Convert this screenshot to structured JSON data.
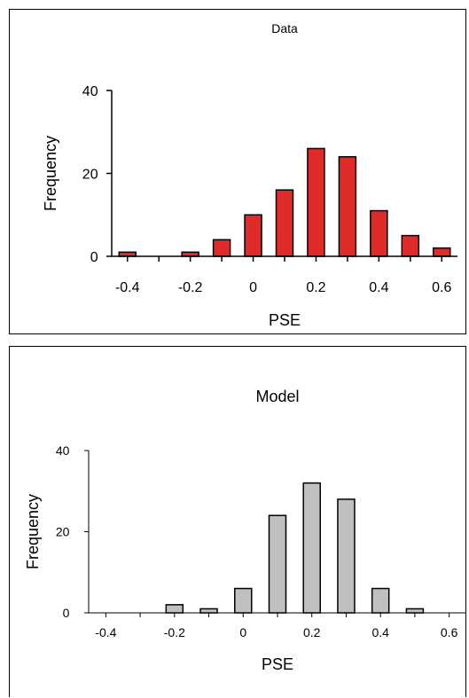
{
  "chart_data": [
    {
      "type": "bar",
      "title": "Data",
      "xlabel": "PSE",
      "ylabel": "Frequency",
      "x": [
        -0.4,
        -0.3,
        -0.2,
        -0.1,
        0,
        0.1,
        0.2,
        0.3,
        0.4,
        0.5,
        0.6
      ],
      "values": [
        1,
        0,
        1,
        4,
        10,
        16,
        26,
        24,
        11,
        5,
        2
      ],
      "xticks": [
        "-0.4",
        "-0.2",
        "0",
        "0.2",
        "0.4",
        "0.6"
      ],
      "xtick_values": [
        -0.4,
        -0.2,
        0,
        0.2,
        0.4,
        0.6
      ],
      "yticks": [
        "0",
        "20",
        "40"
      ],
      "ytick_values": [
        0,
        20,
        40
      ],
      "xlim": [
        -0.45,
        0.65
      ],
      "ylim": [
        0,
        40
      ],
      "bar_color": "#e02b2b",
      "grid": false,
      "legend": "none"
    },
    {
      "type": "bar",
      "title": "Model",
      "xlabel": "PSE",
      "ylabel": "Frequency",
      "x": [
        -0.4,
        -0.3,
        -0.2,
        -0.1,
        0,
        0.1,
        0.2,
        0.3,
        0.4,
        0.5,
        0.6
      ],
      "values": [
        0,
        0,
        2,
        1,
        6,
        24,
        32,
        28,
        6,
        1,
        0
      ],
      "xticks": [
        "-0.4",
        "-0.2",
        "0",
        "0.2",
        "0.4",
        "0.6"
      ],
      "xtick_values": [
        -0.4,
        -0.2,
        0,
        0.2,
        0.4,
        0.6
      ],
      "yticks": [
        "0",
        "20",
        "40"
      ],
      "ytick_values": [
        0,
        20,
        40
      ],
      "xlim": [
        -0.45,
        0.65
      ],
      "ylim": [
        0,
        40
      ],
      "bar_color": "#c0c0c0",
      "grid": false,
      "legend": "none"
    }
  ]
}
